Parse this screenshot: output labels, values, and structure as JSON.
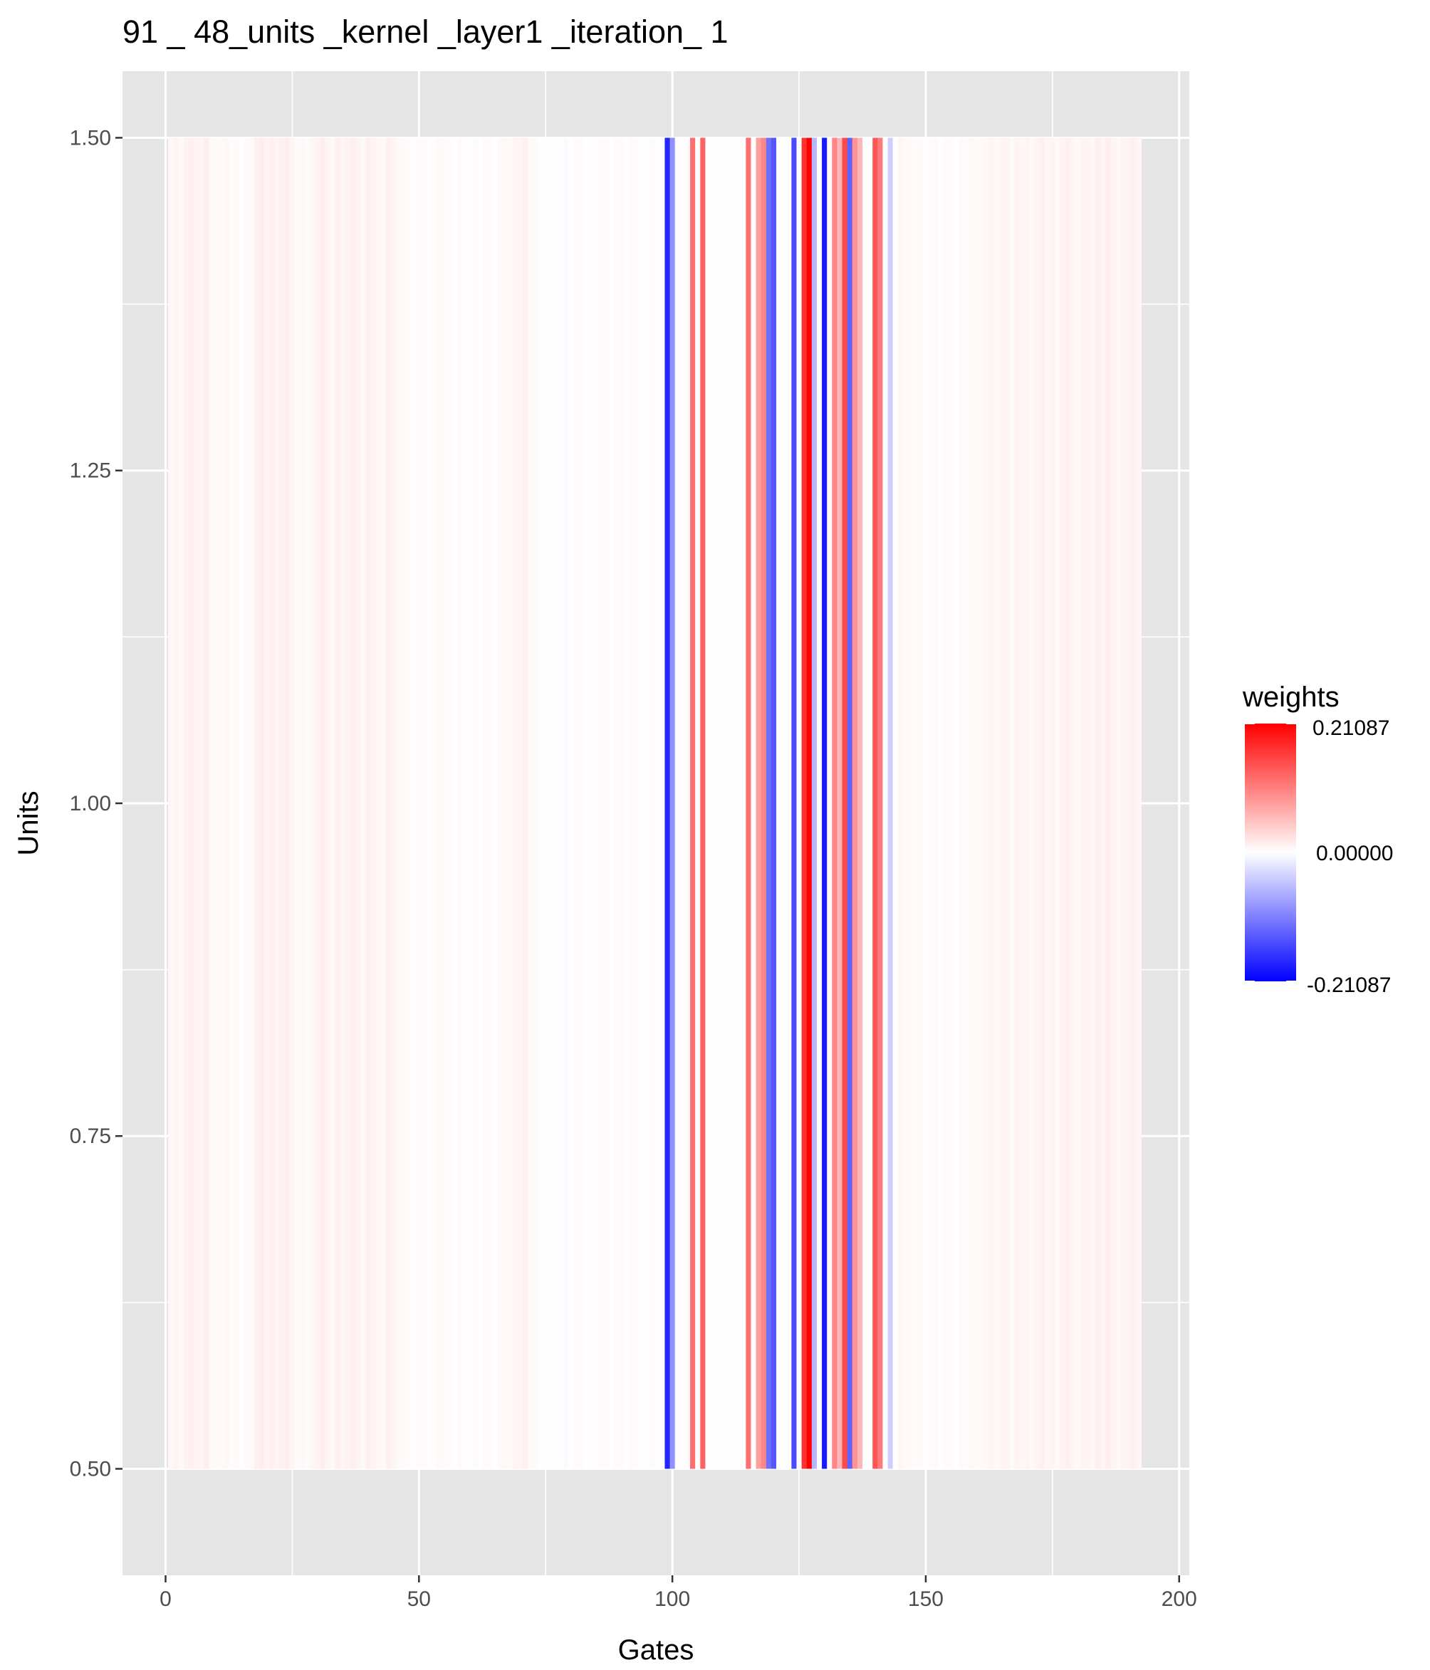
{
  "chart_data": {
    "type": "heatmap",
    "title": "91 _ 48_units _kernel _layer1 _iteration_ 1",
    "xlabel": "Gates",
    "ylabel": "Units",
    "xlim": [
      -8.5,
      202
    ],
    "ylim": [
      0.42,
      1.55
    ],
    "x_ticks": [
      0,
      50,
      100,
      150,
      200
    ],
    "x_tick_labels": [
      "0",
      "50",
      "100",
      "150",
      "200"
    ],
    "y_ticks": [
      0.5,
      0.75,
      1.0,
      1.25,
      1.5
    ],
    "y_tick_labels": [
      "0.50",
      "0.75",
      "1.00",
      "1.25",
      "1.50"
    ],
    "tile_y_range": [
      0.5,
      1.5
    ],
    "gates_start": 1,
    "weights": [
      0.007,
      0.009,
      0.006,
      0.011,
      0.013,
      0.01,
      0.008,
      0.014,
      0.006,
      0.005,
      0.004,
      0.007,
      0.003,
      0.005,
      0.002,
      0.004,
      0.006,
      0.012,
      0.015,
      0.01,
      0.013,
      0.009,
      0.011,
      0.016,
      0.008,
      0.004,
      0.006,
      0.003,
      0.007,
      0.01,
      0.015,
      0.009,
      0.006,
      0.013,
      0.008,
      0.011,
      0.014,
      0.009,
      0.006,
      0.012,
      0.01,
      0.007,
      0.005,
      0.012,
      0.009,
      0.006,
      0.004,
      0.003,
      0.002,
      0.005,
      0.004,
      0.002,
      0.003,
      0.006,
      0.005,
      0.003,
      0.002,
      0.004,
      0.002,
      0.001,
      0.003,
      0.002,
      0.004,
      0.003,
      0.002,
      0.004,
      0.006,
      0.005,
      0.008,
      0.01,
      0.012,
      0.006,
      0.004,
      0.002,
      0.001,
      0.001,
      0.002,
      0.001,
      -0.003,
      0.002,
      0.004,
      0.003,
      0.002,
      0.001,
      0.002,
      0.004,
      0.003,
      0.002,
      0.005,
      0.003,
      0.002,
      0.004,
      0.003,
      0.001,
      0.002,
      0.003,
      0.001,
      0.002,
      -0.18,
      -0.09,
      0.001,
      0.002,
      0.003,
      0.12,
      0.002,
      0.13,
      0.001,
      0.0,
      0.002,
      0.001,
      0.0,
      0.001,
      0.002,
      0.0,
      0.12,
      0.001,
      0.08,
      0.1,
      -0.12,
      -0.14,
      0.0,
      0.001,
      0.002,
      -0.15,
      0.001,
      0.17,
      0.21,
      -0.06,
      0.0,
      -0.19,
      0.003,
      0.1,
      0.06,
      0.15,
      -0.13,
      0.09,
      0.06,
      0.001,
      0.002,
      0.14,
      0.11,
      0.001,
      -0.04,
      0.001,
      0.008,
      0.004,
      0.005,
      0.003,
      0.004,
      0.002,
      0.003,
      0.004,
      0.002,
      0.004,
      0.003,
      0.002,
      0.004,
      0.003,
      0.006,
      0.004,
      0.005,
      0.007,
      0.009,
      0.006,
      0.008,
      0.01,
      0.005,
      0.011,
      0.007,
      0.009,
      0.006,
      0.008,
      0.012,
      0.007,
      0.009,
      0.006,
      0.01,
      0.013,
      0.008,
      0.006,
      0.011,
      0.009,
      0.007,
      0.012,
      0.008,
      0.014,
      0.01,
      0.006,
      0.011,
      0.009,
      0.013,
      0.008
    ],
    "legend": {
      "title": "weights",
      "labels": [
        "0.21087",
        "0.00000",
        "-0.21087"
      ],
      "values": [
        0.21087,
        0.0,
        -0.21087
      ],
      "position": "right"
    },
    "colors": {
      "low": "#0000ff",
      "mid": "#ffffff",
      "high": "#ff0000",
      "panel": "#e5e5e5",
      "grid": "#ffffff"
    }
  }
}
